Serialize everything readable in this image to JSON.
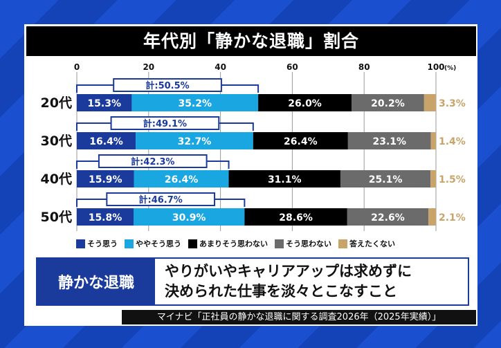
{
  "title": "年代別「静かな退職」割合",
  "chart_data": {
    "type": "bar",
    "orientation": "horizontal",
    "stacked": true,
    "unit_label": "(%)",
    "xlim": [
      0,
      100
    ],
    "x_ticks": [
      0,
      20,
      40,
      60,
      80,
      100
    ],
    "grid": true,
    "legend_position": "bottom",
    "categories": [
      "20代",
      "30代",
      "40代",
      "50代"
    ],
    "series": [
      {
        "name": "そう思う",
        "color": "#1a3a9c",
        "values": [
          15.3,
          16.4,
          15.9,
          15.8
        ]
      },
      {
        "name": "ややそう思う",
        "color": "#1aa6e0",
        "values": [
          35.2,
          32.7,
          26.4,
          30.9
        ]
      },
      {
        "name": "あまりそう思わない",
        "color": "#000000",
        "values": [
          26.0,
          26.4,
          31.1,
          28.6
        ]
      },
      {
        "name": "そう思わない",
        "color": "#6b6b6b",
        "values": [
          20.2,
          23.1,
          25.1,
          22.6
        ]
      },
      {
        "name": "答えたくない",
        "color": "#c9a46a",
        "values": [
          3.3,
          1.4,
          1.5,
          2.1
        ]
      }
    ],
    "data_labels": [
      [
        "15.3%",
        "35.2%",
        "26.0%",
        "20.2%",
        "3.3%"
      ],
      [
        "16.4%",
        "32.7%",
        "26.4%",
        "23.1%",
        "1.4%"
      ],
      [
        "15.9%",
        "26.4%",
        "31.1%",
        "25.1%",
        "1.5%"
      ],
      [
        "15.8%",
        "30.9%",
        "28.6%",
        "22.6%",
        "2.1%"
      ]
    ],
    "totals": [
      {
        "value": 50.5,
        "label": "計:50.5%"
      },
      {
        "value": 49.1,
        "label": "計:49.1%"
      },
      {
        "value": 42.3,
        "label": "計:42.3%"
      },
      {
        "value": 46.7,
        "label": "計:46.7%"
      }
    ]
  },
  "definition": {
    "term": "静かな退職",
    "line1": "やりがいやキャリアアップは求めずに",
    "line2": "決められた仕事を淡々とこなすこと"
  },
  "source": "マイナビ「正社員の静かな退職に関する調査2026年（2025年実績）」"
}
